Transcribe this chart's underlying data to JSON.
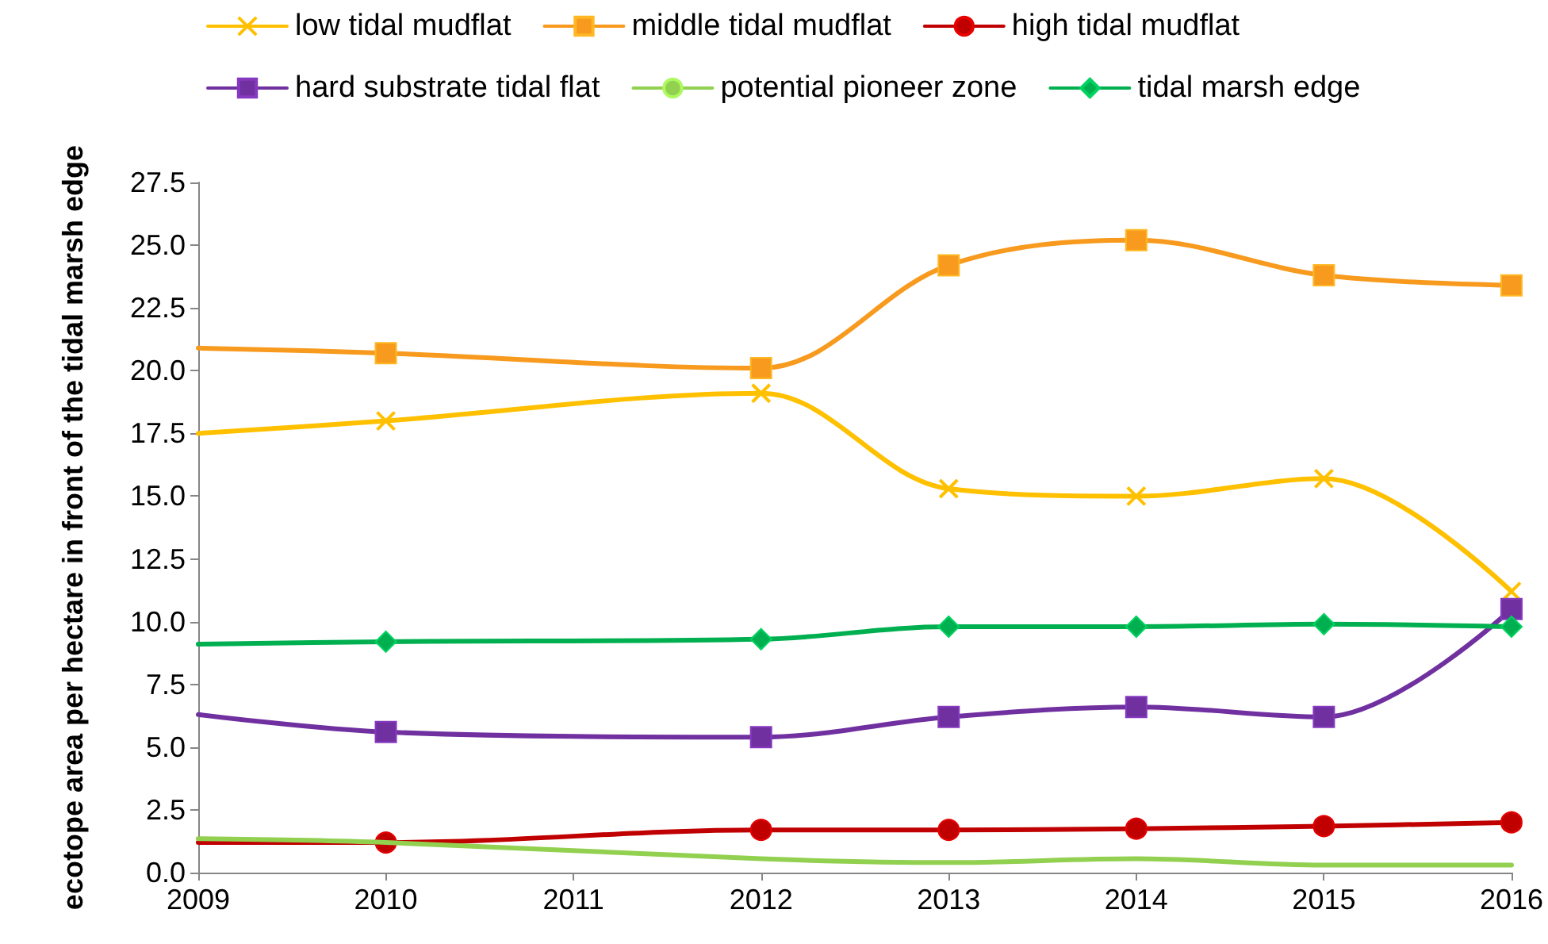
{
  "chart_data": {
    "type": "line",
    "ylabel": "ecotope area per hectare in front of the tidal marsh edge",
    "x": [
      2009,
      2010,
      2012,
      2013,
      2014,
      2015,
      2016
    ],
    "xlim": [
      2009,
      2016
    ],
    "xticks": [
      2009,
      2010,
      2011,
      2012,
      2013,
      2014,
      2015,
      2016
    ],
    "ylim": [
      0,
      27.5
    ],
    "yticks": [
      {
        "value": 0,
        "label": "0.0"
      },
      {
        "value": 2.5,
        "label": "2.5"
      },
      {
        "value": 5,
        "label": "5.0"
      },
      {
        "value": 7.5,
        "label": "7.5"
      },
      {
        "value": 10,
        "label": "10.0"
      },
      {
        "value": 12.5,
        "label": "12.5"
      },
      {
        "value": 15,
        "label": "15.0"
      },
      {
        "value": 17.5,
        "label": "17.5"
      },
      {
        "value": 20,
        "label": "20.0"
      },
      {
        "value": 22.5,
        "label": "22.5"
      },
      {
        "value": 25,
        "label": "25.0"
      },
      {
        "value": 27.5,
        "label": "27.5"
      }
    ],
    "grid": false,
    "legend": "top",
    "series": [
      {
        "name": "low tidal mudflat",
        "color": "#ffc000",
        "marker": "cross",
        "values": [
          17.5,
          18.0,
          19.1,
          15.3,
          15.0,
          15.7,
          11.2
        ]
      },
      {
        "name": "middle tidal mudflat",
        "color": "#f79a1e",
        "marker": "square",
        "values": [
          20.9,
          20.7,
          20.1,
          24.2,
          25.2,
          23.8,
          23.4
        ]
      },
      {
        "name": "high tidal mudflat",
        "color": "#c00000",
        "marker": "circle",
        "values": [
          1.2,
          1.2,
          1.7,
          1.7,
          1.75,
          1.85,
          2.0
        ]
      },
      {
        "name": "hard substrate tidal flat",
        "color": "#7030a0",
        "marker": "square",
        "values": [
          6.3,
          5.6,
          5.4,
          6.2,
          6.6,
          6.2,
          10.5
        ]
      },
      {
        "name": "potential pioneer zone",
        "color": "#92d050",
        "marker": "none",
        "values": [
          1.35,
          1.2,
          0.55,
          0.4,
          0.55,
          0.3,
          0.3
        ]
      },
      {
        "name": "tidal marsh edge",
        "color": "#00b050",
        "marker": "diamond",
        "values": [
          9.1,
          9.2,
          9.3,
          9.8,
          9.8,
          9.9,
          9.8
        ]
      }
    ]
  }
}
